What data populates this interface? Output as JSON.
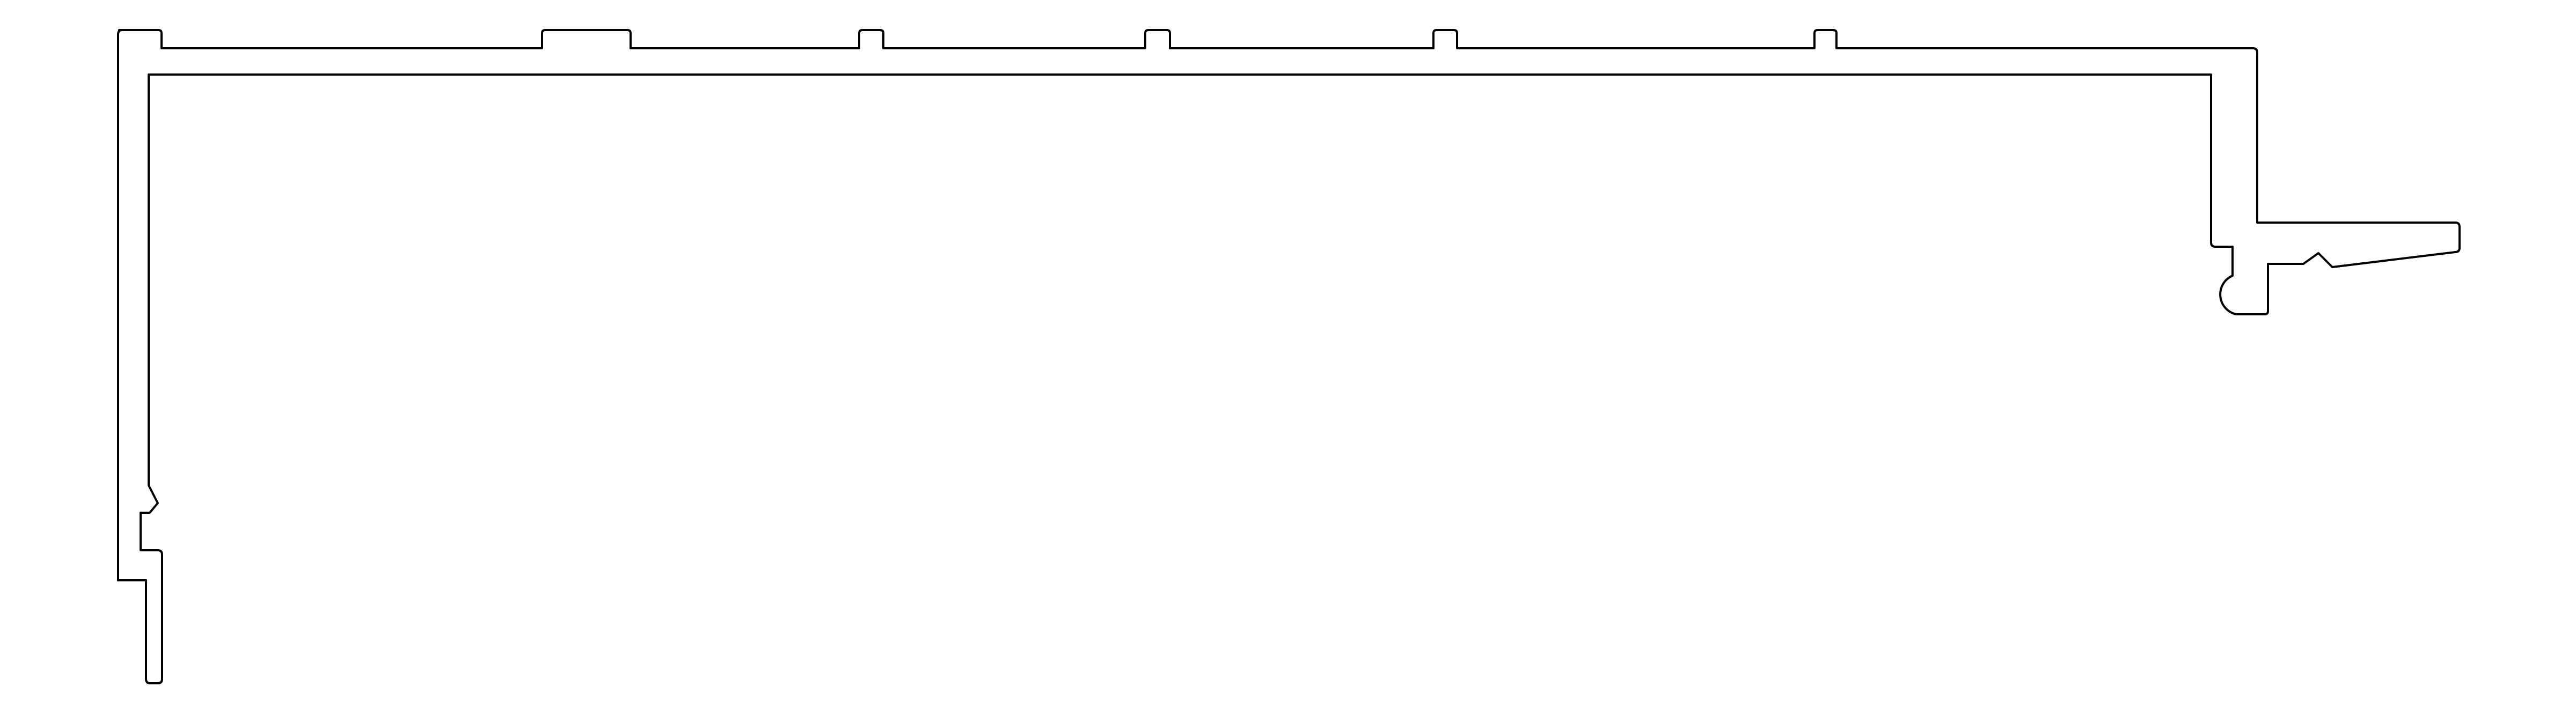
{
  "drawing": {
    "subject": "extrusion-profile-cross-section",
    "background_color": "#ffffff",
    "line_color": "#000000",
    "text_labels": []
  }
}
